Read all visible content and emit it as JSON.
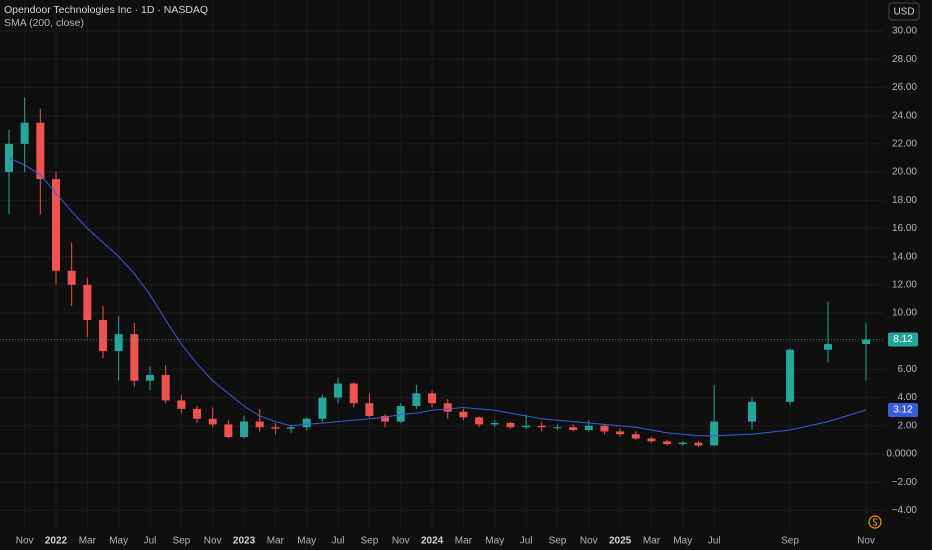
{
  "chart_data": {
    "type": "candlestick",
    "title": "Opendoor Technologies Inc · 1D · NASDAQ",
    "subtitle": "SMA (200, close)",
    "currency": "USD",
    "categories": [
      null,
      "Nov",
      null,
      "2022",
      null,
      "Mar",
      null,
      "May",
      null,
      "Jul",
      null,
      "Sep",
      null,
      "Nov",
      null,
      "2023",
      null,
      "Mar",
      null,
      "May",
      null,
      "Jul",
      null,
      "Sep",
      null,
      "Nov",
      null,
      "2024",
      null,
      "Mar",
      null,
      "May",
      null,
      "Jul",
      null,
      "Sep",
      null,
      "Nov",
      null,
      "2025",
      null,
      "Mar",
      null,
      "May",
      null,
      "Jul",
      null,
      "Sep",
      null,
      "Nov"
    ],
    "open": [
      20,
      22,
      23.5,
      19.5,
      13,
      12,
      9.5,
      7.3,
      8.5,
      5.2,
      5.6,
      3.8,
      3.2,
      2.5,
      2.1,
      1.2,
      2.3,
      1.9,
      1.8,
      1.9,
      2.5,
      4.0,
      5.0,
      3.6,
      2.7,
      2.3,
      3.4,
      4.3,
      3.6,
      3.0,
      2.6,
      2.1,
      2.2,
      1.9,
      2.0,
      1.9,
      1.9,
      1.7,
      2.0,
      1.6,
      1.4,
      1.1,
      0.9,
      0.7,
      0.8,
      0.6,
      2.3,
      3.7,
      7.4,
      7.8
    ],
    "high": [
      23,
      25.3,
      24.5,
      20,
      15,
      12.5,
      10.5,
      9.8,
      9.3,
      6.2,
      6.3,
      4.2,
      3.4,
      3.3,
      2.4,
      2.7,
      3.2,
      2.2,
      2.1,
      2.6,
      4.2,
      5.4,
      5.1,
      4.3,
      2.8,
      3.6,
      4.9,
      4.5,
      3.9,
      3.2,
      2.7,
      2.4,
      2.3,
      2.8,
      2.3,
      2.1,
      2.1,
      2.4,
      2.1,
      1.8,
      1.6,
      1.2,
      1.0,
      0.9,
      0.9,
      4.9,
      4.0,
      7.5,
      10.8,
      9.3
    ],
    "low": [
      17,
      20,
      17,
      12,
      10.5,
      8.3,
      6.8,
      5.2,
      4.8,
      4.5,
      3.6,
      2.9,
      2.2,
      1.9,
      1.1,
      1.1,
      1.6,
      1.4,
      1.5,
      1.7,
      2.3,
      3.6,
      3.3,
      2.6,
      1.9,
      2.2,
      3.2,
      3.3,
      2.5,
      2.4,
      1.9,
      1.9,
      1.8,
      1.8,
      1.6,
      1.7,
      1.6,
      1.6,
      1.4,
      1.2,
      1.0,
      0.8,
      0.6,
      0.6,
      0.5,
      0.6,
      1.7,
      3.5,
      6.5,
      5.2
    ],
    "close": [
      22,
      23.5,
      19.5,
      13,
      12,
      9.5,
      7.3,
      8.5,
      5.2,
      5.6,
      3.8,
      3.2,
      2.5,
      2.1,
      1.2,
      2.3,
      1.9,
      1.8,
      1.9,
      2.5,
      4.0,
      5.0,
      3.6,
      2.7,
      2.3,
      3.4,
      4.3,
      3.6,
      3.0,
      2.6,
      2.1,
      2.2,
      1.9,
      2.0,
      1.9,
      1.9,
      1.7,
      2.0,
      1.6,
      1.4,
      1.1,
      0.9,
      0.7,
      0.8,
      0.6,
      2.3,
      3.7,
      7.4,
      7.8,
      8.12
    ],
    "up_color": "#26a69a",
    "down_color": "#ef5350",
    "sma": {
      "name": "SMA (200, close)",
      "color": "#3b5bdb",
      "values": [
        21.0,
        20.5,
        19.8,
        18.5,
        17.2,
        16.0,
        15.0,
        14.0,
        12.8,
        11.3,
        9.5,
        7.8,
        6.4,
        5.2,
        4.3,
        3.4,
        2.7,
        2.3,
        2.0,
        2.1,
        2.2,
        2.3,
        2.4,
        2.5,
        2.6,
        2.8,
        2.9,
        3.1,
        3.2,
        3.3,
        3.2,
        3.1,
        2.9,
        2.7,
        2.5,
        2.4,
        2.3,
        2.2,
        2.1,
        2.0,
        1.9,
        1.7,
        1.5,
        1.4,
        1.3,
        1.3,
        1.4,
        1.7,
        2.3,
        3.12
      ]
    },
    "ylim": [
      -5.39,
      32.2
    ],
    "yticks": [
      {
        "value": 30,
        "label": "30.00"
      },
      {
        "value": 28,
        "label": "28.00"
      },
      {
        "value": 26,
        "label": "26.00"
      },
      {
        "value": 24,
        "label": "24.00"
      },
      {
        "value": 22,
        "label": "22.00"
      },
      {
        "value": 20,
        "label": "20.00"
      },
      {
        "value": 18,
        "label": "18.00"
      },
      {
        "value": 16,
        "label": "16.00"
      },
      {
        "value": 14,
        "label": "14.00"
      },
      {
        "value": 12,
        "label": "12.00"
      },
      {
        "value": 10,
        "label": "10.00"
      },
      {
        "value": 8,
        "label": "8.00"
      },
      {
        "value": 6,
        "label": "6.00"
      },
      {
        "value": 4,
        "label": "4.00"
      },
      {
        "value": 2,
        "label": "2.00"
      },
      {
        "value": 0,
        "label": "0.0000"
      },
      {
        "value": -2,
        "label": "−2.00"
      },
      {
        "value": -4,
        "label": "−4.00"
      }
    ],
    "grid": true
  }
}
